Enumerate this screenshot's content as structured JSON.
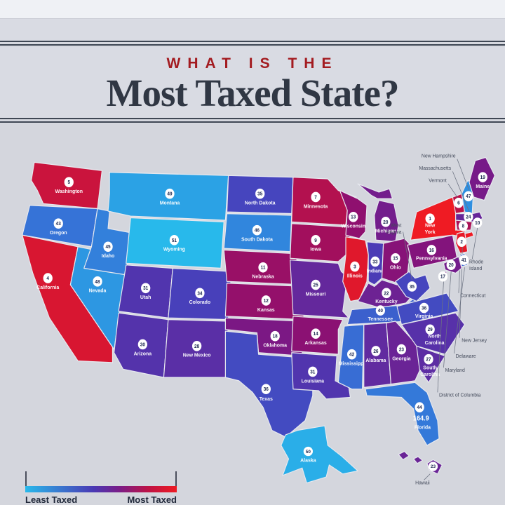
{
  "header": {
    "kicker": "WHAT IS THE",
    "title": "Most Taxed State?"
  },
  "legend": {
    "least_label": "Least Taxed",
    "most_label": "Most Taxed"
  },
  "colors": {
    "most_taxed": "#ee1b23",
    "least_taxed": "#28b9eb",
    "kicker": "#a31b20",
    "title": "#303744"
  },
  "chart_data": {
    "type": "choropleth",
    "title": "What Is the Most Taxed State?",
    "unit": "rank (1 = most taxed, 51 = least taxed)",
    "legend": {
      "left": "Least Taxed",
      "right": "Most Taxed"
    },
    "states": [
      {
        "abbr": "WA",
        "name": "Washington",
        "rank": 5
      },
      {
        "abbr": "OR",
        "name": "Oregon",
        "rank": 43
      },
      {
        "abbr": "CA",
        "name": "California",
        "rank": 4
      },
      {
        "abbr": "NV",
        "name": "Nevada",
        "rank": 48
      },
      {
        "abbr": "ID",
        "name": "Idaho",
        "rank": 45
      },
      {
        "abbr": "MT",
        "name": "Montana",
        "rank": 49
      },
      {
        "abbr": "WY",
        "name": "Wyoming",
        "rank": 51
      },
      {
        "abbr": "UT",
        "name": "Utah",
        "rank": 31
      },
      {
        "abbr": "CO",
        "name": "Colorado",
        "rank": 34
      },
      {
        "abbr": "AZ",
        "name": "Arizona",
        "rank": 30
      },
      {
        "abbr": "NM",
        "name": "New Mexico",
        "rank": 28
      },
      {
        "abbr": "ND",
        "name": "North Dakota",
        "rank": 35
      },
      {
        "abbr": "SD",
        "name": "South Dakota",
        "rank": 46
      },
      {
        "abbr": "NE",
        "name": "Nebraska",
        "rank": 11
      },
      {
        "abbr": "KS",
        "name": "Kansas",
        "rank": 12
      },
      {
        "abbr": "OK",
        "name": "Oklahoma",
        "rank": 18
      },
      {
        "abbr": "TX",
        "name": "Texas",
        "rank": 36
      },
      {
        "abbr": "MN",
        "name": "Minnesota",
        "rank": 7
      },
      {
        "abbr": "IA",
        "name": "Iowa",
        "rank": 9
      },
      {
        "abbr": "MO",
        "name": "Missouri",
        "rank": 25
      },
      {
        "abbr": "AR",
        "name": "Arkansas",
        "rank": 14
      },
      {
        "abbr": "LA",
        "name": "Louisiana",
        "rank": 31
      },
      {
        "abbr": "WI",
        "name": "Wisconsin",
        "rank": 13
      },
      {
        "abbr": "IL",
        "name": "Illinois",
        "rank": 3
      },
      {
        "abbr": "MI",
        "name": "Michigan",
        "rank": 20
      },
      {
        "abbr": "IN",
        "name": "Indiana",
        "rank": 33
      },
      {
        "abbr": "OH",
        "name": "Ohio",
        "rank": 15
      },
      {
        "abbr": "KY",
        "name": "Kentucky",
        "rank": 22
      },
      {
        "abbr": "TN",
        "name": "Tennessee",
        "rank": 40
      },
      {
        "abbr": "MS",
        "name": "Mississippi",
        "rank": 42
      },
      {
        "abbr": "AL",
        "name": "Alabama",
        "rank": 26
      },
      {
        "abbr": "GA",
        "name": "Georgia",
        "rank": 23
      },
      {
        "abbr": "FL",
        "name": "Florida",
        "rank": 44,
        "value": "164.9"
      },
      {
        "abbr": "SC",
        "name": "South Carolina",
        "rank": 27
      },
      {
        "abbr": "NC",
        "name": "North Carolina",
        "rank": 29
      },
      {
        "abbr": "VA",
        "name": "Virginia",
        "rank": 36
      },
      {
        "abbr": "WV",
        "name": "West Virginia",
        "rank": 35
      },
      {
        "abbr": "PA",
        "name": "Pennsylvania",
        "rank": 16
      },
      {
        "abbr": "NY",
        "name": "New York",
        "rank": 1
      },
      {
        "abbr": "VT",
        "name": "Vermont",
        "rank": 6
      },
      {
        "abbr": "NH",
        "name": "New Hampshire",
        "rank": 47
      },
      {
        "abbr": "ME",
        "name": "Maine",
        "rank": 19
      },
      {
        "abbr": "MA",
        "name": "Massachusetts",
        "rank": 24
      },
      {
        "abbr": "RI",
        "name": "Rhode Island",
        "rank": 10
      },
      {
        "abbr": "CT",
        "name": "Connecticut",
        "rank": 8
      },
      {
        "abbr": "NJ",
        "name": "New Jersey",
        "rank": 2
      },
      {
        "abbr": "DE",
        "name": "Delaware",
        "rank": 41
      },
      {
        "abbr": "MD",
        "name": "Maryland",
        "rank": 20
      },
      {
        "abbr": "DC",
        "name": "District of Columbia",
        "rank": 17
      },
      {
        "abbr": "AK",
        "name": "Alaska",
        "rank": 50
      },
      {
        "abbr": "HI",
        "name": "Hawaii",
        "rank": 23
      }
    ]
  }
}
